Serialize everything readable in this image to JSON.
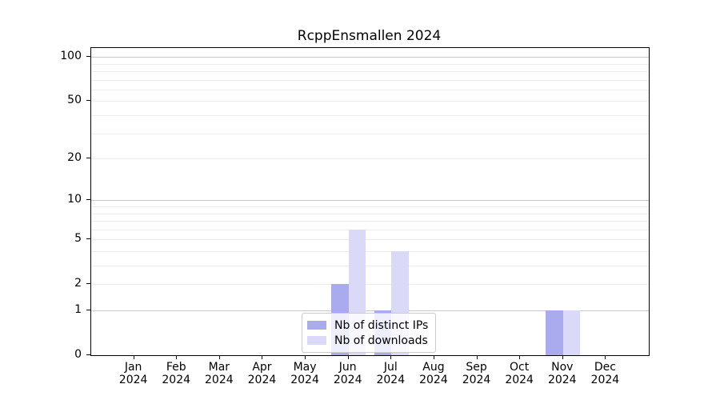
{
  "chart_data": {
    "type": "bar",
    "title": "RcppEnsmallen 2024",
    "categories": [
      "Jan",
      "Feb",
      "Mar",
      "Apr",
      "May",
      "Jun",
      "Jul",
      "Aug",
      "Sep",
      "Oct",
      "Nov",
      "Dec"
    ],
    "x_tick_year": "2024",
    "series": [
      {
        "name": "Nb of distinct IPs",
        "color": "#aaaaee",
        "values": [
          0,
          0,
          0,
          0,
          0,
          2,
          1,
          0,
          0,
          0,
          1,
          0
        ]
      },
      {
        "name": "Nb of downloads",
        "color": "#dadaf8",
        "values": [
          0,
          0,
          0,
          0,
          0,
          6,
          4,
          0,
          0,
          0,
          1,
          0
        ]
      }
    ],
    "yscale": "log1p",
    "ylim": [
      0,
      115
    ],
    "yticks": [
      0,
      1,
      2,
      5,
      10,
      20,
      50,
      100
    ],
    "grid": {
      "major": [
        1,
        10,
        100
      ],
      "minor": [
        2,
        3,
        4,
        5,
        6,
        7,
        8,
        9,
        20,
        30,
        40,
        50,
        60,
        70,
        80,
        90
      ],
      "major_color": "#c8c8c8",
      "minor_color": "#ececec"
    },
    "legend_position": "lower center"
  },
  "colors": {
    "axis_frame": "#000000",
    "background": "#ffffff",
    "legend_border": "#cccccc"
  }
}
